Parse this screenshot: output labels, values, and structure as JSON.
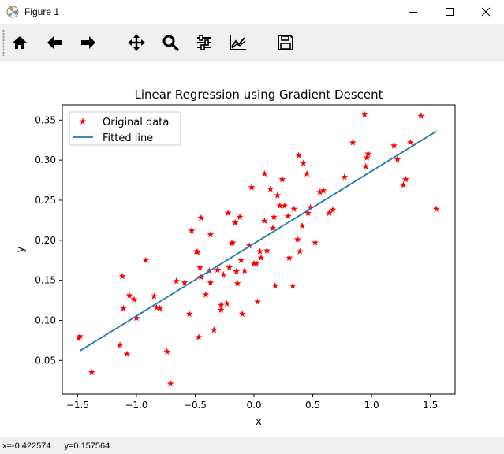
{
  "window": {
    "title": "Figure 1"
  },
  "toolbar": {
    "buttons": [
      "home-icon",
      "back-arrow-icon",
      "forward-arrow-icon",
      "pan-icon",
      "zoom-icon",
      "configure-subplots-icon",
      "edit-axis-icon",
      "save-icon"
    ]
  },
  "status": {
    "x_text": "x=-0.422574",
    "y_text": "y=0.157564"
  },
  "chart_data": {
    "type": "scatter",
    "title": "Linear Regression using Gradient Descent",
    "xlabel": "x",
    "ylabel": "y",
    "xlim": [
      -1.63,
      1.71
    ],
    "ylim": [
      0.008,
      0.369
    ],
    "xticks": [
      -1.5,
      -1.0,
      -0.5,
      0.0,
      0.5,
      1.0,
      1.5
    ],
    "xtick_labels": [
      "−1.5",
      "−1.0",
      "−0.5",
      "0.0",
      "0.5",
      "1.0",
      "1.5"
    ],
    "yticks": [
      0.05,
      0.1,
      0.15,
      0.2,
      0.25,
      0.3,
      0.35
    ],
    "ytick_labels": [
      "0.05",
      "0.10",
      "0.15",
      "0.20",
      "0.25",
      "0.30",
      "0.35"
    ],
    "legend_position": "upper-left",
    "series": [
      {
        "name": "Original data",
        "style": "markers",
        "marker": "star",
        "color": "#ff0000",
        "points": [
          [
            -1.48,
            0.08
          ],
          [
            -1.49,
            0.078
          ],
          [
            -1.38,
            0.035
          ],
          [
            -1.12,
            0.155
          ],
          [
            -1.11,
            0.115
          ],
          [
            -1.14,
            0.069
          ],
          [
            -1.08,
            0.058
          ],
          [
            -1.06,
            0.131
          ],
          [
            -1.02,
            0.126
          ],
          [
            -1.0,
            0.103
          ],
          [
            -0.92,
            0.175
          ],
          [
            -0.85,
            0.13
          ],
          [
            -0.83,
            0.116
          ],
          [
            -0.8,
            0.115
          ],
          [
            -0.74,
            0.061
          ],
          [
            -0.71,
            0.021
          ],
          [
            -0.66,
            0.149
          ],
          [
            -0.59,
            0.147
          ],
          [
            -0.55,
            0.108
          ],
          [
            -0.53,
            0.212
          ],
          [
            -0.49,
            0.186
          ],
          [
            -0.48,
            0.185
          ],
          [
            -0.46,
            0.166
          ],
          [
            -0.45,
            0.154
          ],
          [
            -0.47,
            0.079
          ],
          [
            -0.45,
            0.228
          ],
          [
            -0.41,
            0.132
          ],
          [
            -0.38,
            0.162
          ],
          [
            -0.37,
            0.147
          ],
          [
            -0.37,
            0.207
          ],
          [
            -0.34,
            0.088
          ],
          [
            -0.31,
            0.163
          ],
          [
            -0.28,
            0.113
          ],
          [
            -0.28,
            0.119
          ],
          [
            -0.26,
            0.157
          ],
          [
            -0.23,
            0.121
          ],
          [
            -0.22,
            0.234
          ],
          [
            -0.21,
            0.166
          ],
          [
            -0.19,
            0.196
          ],
          [
            -0.18,
            0.197
          ],
          [
            -0.16,
            0.222
          ],
          [
            -0.15,
            0.161
          ],
          [
            -0.14,
            0.146
          ],
          [
            -0.12,
            0.229
          ],
          [
            -0.11,
            0.175
          ],
          [
            -0.1,
            0.108
          ],
          [
            -0.08,
            0.162
          ],
          [
            -0.04,
            0.193
          ],
          [
            -0.02,
            0.266
          ],
          [
            0.0,
            0.171
          ],
          [
            0.02,
            0.171
          ],
          [
            0.03,
            0.123
          ],
          [
            0.05,
            0.186
          ],
          [
            0.06,
            0.178
          ],
          [
            0.09,
            0.283
          ],
          [
            0.09,
            0.224
          ],
          [
            0.11,
            0.187
          ],
          [
            0.14,
            0.264
          ],
          [
            0.16,
            0.215
          ],
          [
            0.17,
            0.229
          ],
          [
            0.18,
            0.143
          ],
          [
            0.2,
            0.256
          ],
          [
            0.22,
            0.243
          ],
          [
            0.24,
            0.276
          ],
          [
            0.26,
            0.243
          ],
          [
            0.29,
            0.23
          ],
          [
            0.3,
            0.178
          ],
          [
            0.33,
            0.143
          ],
          [
            0.34,
            0.239
          ],
          [
            0.37,
            0.201
          ],
          [
            0.38,
            0.306
          ],
          [
            0.39,
            0.186
          ],
          [
            0.41,
            0.218
          ],
          [
            0.42,
            0.296
          ],
          [
            0.45,
            0.283
          ],
          [
            0.46,
            0.234
          ],
          [
            0.48,
            0.241
          ],
          [
            0.52,
            0.197
          ],
          [
            0.56,
            0.26
          ],
          [
            0.59,
            0.262
          ],
          [
            0.64,
            0.234
          ],
          [
            0.67,
            0.238
          ],
          [
            0.77,
            0.279
          ],
          [
            0.84,
            0.322
          ],
          [
            0.94,
            0.357
          ],
          [
            0.95,
            0.292
          ],
          [
            0.96,
            0.303
          ],
          [
            0.97,
            0.308
          ],
          [
            1.19,
            0.318
          ],
          [
            1.22,
            0.301
          ],
          [
            1.27,
            0.269
          ],
          [
            1.29,
            0.276
          ],
          [
            1.33,
            0.322
          ],
          [
            1.42,
            0.355
          ],
          [
            1.55,
            0.239
          ]
        ]
      },
      {
        "name": "Fitted line",
        "style": "line",
        "color": "#1f77b4",
        "x": [
          -1.48,
          1.55
        ],
        "y": [
          0.062,
          0.336
        ]
      }
    ]
  }
}
